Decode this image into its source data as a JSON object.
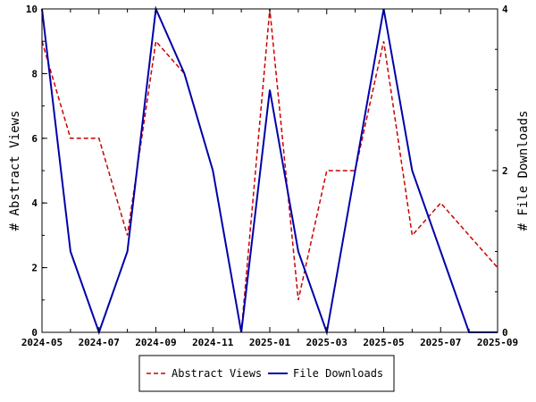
{
  "chart_data": {
    "type": "line",
    "title": "",
    "xlabel": "",
    "ylabel": "# Abstract Views",
    "y2label": "# File Downloads",
    "x": [
      "2024-05",
      "2024-06",
      "2024-07",
      "2024-08",
      "2024-09",
      "2024-10",
      "2024-11",
      "2024-12",
      "2025-01",
      "2025-02",
      "2025-03",
      "2025-04",
      "2025-05",
      "2025-06",
      "2025-07",
      "2025-08",
      "2025-09"
    ],
    "xticks": [
      "2024-05",
      "2024-07",
      "2024-09",
      "2024-11",
      "2025-01",
      "2025-03",
      "2025-05",
      "2025-07",
      "2025-09"
    ],
    "ylim": [
      0,
      10
    ],
    "yticks": [
      "0",
      "2",
      "4",
      "6",
      "8",
      "10"
    ],
    "y2lim": [
      0,
      4
    ],
    "y2ticks": [
      "0",
      "2",
      "4"
    ],
    "grid": false,
    "legend_position": "bottom",
    "series": [
      {
        "name": "Abstract Views",
        "axis": "left",
        "style": "dashed",
        "color": "#cc0000",
        "values": [
          9,
          6,
          6,
          3,
          9,
          8,
          5,
          0,
          10,
          1,
          5,
          5,
          9,
          3,
          4,
          3,
          2
        ]
      },
      {
        "name": "File Downloads",
        "axis": "right",
        "style": "solid",
        "color": "#0000aa",
        "values": [
          4,
          1,
          0,
          1,
          4,
          3.2,
          2,
          0,
          3,
          1,
          0,
          2,
          4,
          2,
          1,
          0,
          0
        ]
      }
    ]
  }
}
